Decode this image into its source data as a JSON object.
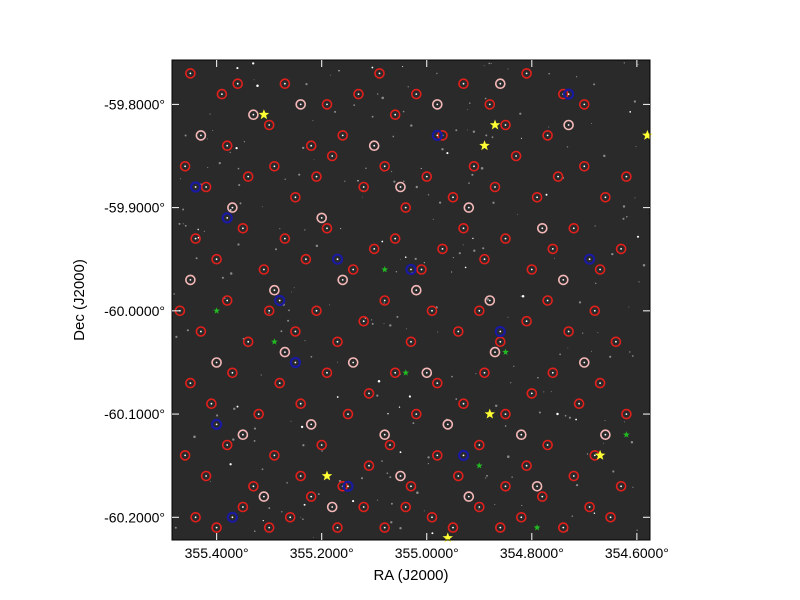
{
  "chart_data": {
    "type": "scatter",
    "title": "",
    "xlabel": "RA (J2000)",
    "ylabel": "Dec (J2000)",
    "xlim": [
      355.485,
      354.575
    ],
    "ylim": [
      -60.222,
      -59.757
    ],
    "x_ticks": [
      {
        "value": 355.4,
        "label": "355.4000°"
      },
      {
        "value": 355.2,
        "label": "355.2000°"
      },
      {
        "value": 355.0,
        "label": "355.0000°"
      },
      {
        "value": 354.8,
        "label": "354.8000°"
      },
      {
        "value": 354.6,
        "label": "354.6000°"
      }
    ],
    "y_ticks": [
      {
        "value": -59.8,
        "label": "-59.8000°"
      },
      {
        "value": -59.9,
        "label": "-59.9000°"
      },
      {
        "value": -60.0,
        "label": "-60.0000°"
      },
      {
        "value": -60.1,
        "label": "-60.1000°"
      },
      {
        "value": -60.2,
        "label": "-60.2000°"
      }
    ],
    "background": "star field image",
    "grid": false,
    "legend": "none",
    "colors": {
      "red_circle": "#e0201c",
      "pink_circle": "#f4b8b8",
      "blue_circle": "#1a1aa0",
      "yellow_star": "#ffff33",
      "green_star": "#22bb22",
      "image_bg": "#2a2a2a",
      "frame": "#000000"
    },
    "series": [
      {
        "marker": "red-circle",
        "points": [
          [
            355.45,
            -59.77
          ],
          [
            355.39,
            -59.79
          ],
          [
            355.36,
            -59.78
          ],
          [
            355.3,
            -59.82
          ],
          [
            355.27,
            -59.78
          ],
          [
            355.22,
            -59.84
          ],
          [
            355.19,
            -59.8
          ],
          [
            355.16,
            -59.83
          ],
          [
            355.13,
            -59.79
          ],
          [
            355.09,
            -59.77
          ],
          [
            355.06,
            -59.81
          ],
          [
            355.02,
            -59.79
          ],
          [
            354.97,
            -59.83
          ],
          [
            354.93,
            -59.78
          ],
          [
            354.88,
            -59.8
          ],
          [
            354.85,
            -59.82
          ],
          [
            354.81,
            -59.77
          ],
          [
            354.77,
            -59.83
          ],
          [
            354.74,
            -59.79
          ],
          [
            354.7,
            -59.8
          ],
          [
            355.46,
            -59.86
          ],
          [
            355.42,
            -59.88
          ],
          [
            355.38,
            -59.84
          ],
          [
            355.34,
            -59.87
          ],
          [
            355.29,
            -59.86
          ],
          [
            355.25,
            -59.89
          ],
          [
            355.21,
            -59.87
          ],
          [
            355.18,
            -59.85
          ],
          [
            355.12,
            -59.88
          ],
          [
            355.08,
            -59.86
          ],
          [
            355.04,
            -59.9
          ],
          [
            355.0,
            -59.87
          ],
          [
            354.95,
            -59.89
          ],
          [
            354.91,
            -59.86
          ],
          [
            354.87,
            -59.88
          ],
          [
            354.83,
            -59.85
          ],
          [
            354.79,
            -59.89
          ],
          [
            354.75,
            -59.87
          ],
          [
            354.7,
            -59.86
          ],
          [
            354.66,
            -59.89
          ],
          [
            354.62,
            -59.87
          ],
          [
            355.44,
            -59.93
          ],
          [
            355.4,
            -59.95
          ],
          [
            355.35,
            -59.92
          ],
          [
            355.31,
            -59.96
          ],
          [
            355.27,
            -59.93
          ],
          [
            355.23,
            -59.95
          ],
          [
            355.19,
            -59.92
          ],
          [
            355.14,
            -59.96
          ],
          [
            355.1,
            -59.94
          ],
          [
            355.06,
            -59.93
          ],
          [
            355.01,
            -59.96
          ],
          [
            354.97,
            -59.94
          ],
          [
            354.93,
            -59.92
          ],
          [
            354.89,
            -59.95
          ],
          [
            354.85,
            -59.93
          ],
          [
            354.8,
            -59.96
          ],
          [
            354.76,
            -59.94
          ],
          [
            354.72,
            -59.92
          ],
          [
            354.67,
            -59.96
          ],
          [
            354.63,
            -59.94
          ],
          [
            355.47,
            -60.0
          ],
          [
            355.43,
            -60.02
          ],
          [
            355.38,
            -59.99
          ],
          [
            355.34,
            -60.03
          ],
          [
            355.3,
            -60.0
          ],
          [
            355.25,
            -60.02
          ],
          [
            355.21,
            -60.0
          ],
          [
            355.17,
            -60.03
          ],
          [
            355.12,
            -60.01
          ],
          [
            355.08,
            -59.99
          ],
          [
            355.03,
            -60.03
          ],
          [
            354.99,
            -60.0
          ],
          [
            354.94,
            -60.02
          ],
          [
            354.9,
            -60.0
          ],
          [
            354.86,
            -60.03
          ],
          [
            354.81,
            -60.01
          ],
          [
            354.77,
            -59.99
          ],
          [
            354.73,
            -60.02
          ],
          [
            354.68,
            -60.0
          ],
          [
            354.64,
            -60.03
          ],
          [
            355.45,
            -60.07
          ],
          [
            355.41,
            -60.09
          ],
          [
            355.37,
            -60.06
          ],
          [
            355.32,
            -60.1
          ],
          [
            355.28,
            -60.07
          ],
          [
            355.24,
            -60.09
          ],
          [
            355.19,
            -60.06
          ],
          [
            355.15,
            -60.1
          ],
          [
            355.11,
            -60.08
          ],
          [
            355.06,
            -60.06
          ],
          [
            355.02,
            -60.1
          ],
          [
            354.98,
            -60.07
          ],
          [
            354.93,
            -60.09
          ],
          [
            354.89,
            -60.06
          ],
          [
            354.85,
            -60.1
          ],
          [
            354.8,
            -60.08
          ],
          [
            354.76,
            -60.06
          ],
          [
            354.71,
            -60.09
          ],
          [
            354.67,
            -60.07
          ],
          [
            354.62,
            -60.1
          ],
          [
            355.46,
            -60.14
          ],
          [
            355.42,
            -60.16
          ],
          [
            355.38,
            -60.13
          ],
          [
            355.33,
            -60.17
          ],
          [
            355.29,
            -60.14
          ],
          [
            355.24,
            -60.16
          ],
          [
            355.2,
            -60.13
          ],
          [
            355.16,
            -60.17
          ],
          [
            355.11,
            -60.15
          ],
          [
            355.07,
            -60.13
          ],
          [
            355.03,
            -60.17
          ],
          [
            354.98,
            -60.14
          ],
          [
            354.94,
            -60.16
          ],
          [
            354.9,
            -60.13
          ],
          [
            354.85,
            -60.17
          ],
          [
            354.81,
            -60.15
          ],
          [
            354.77,
            -60.13
          ],
          [
            354.72,
            -60.16
          ],
          [
            354.68,
            -60.14
          ],
          [
            354.63,
            -60.17
          ],
          [
            355.44,
            -60.2
          ],
          [
            355.4,
            -60.21
          ],
          [
            355.35,
            -60.19
          ],
          [
            355.3,
            -60.21
          ],
          [
            355.26,
            -60.2
          ],
          [
            355.22,
            -60.18
          ],
          [
            355.17,
            -60.21
          ],
          [
            355.12,
            -60.19
          ],
          [
            355.08,
            -60.21
          ],
          [
            355.04,
            -60.19
          ],
          [
            354.99,
            -60.2
          ],
          [
            354.95,
            -60.21
          ],
          [
            354.9,
            -60.19
          ],
          [
            354.86,
            -60.21
          ],
          [
            354.82,
            -60.2
          ],
          [
            354.78,
            -60.18
          ],
          [
            354.74,
            -60.21
          ],
          [
            354.69,
            -60.19
          ],
          [
            354.65,
            -60.2
          ]
        ]
      },
      {
        "marker": "pink-circle",
        "points": [
          [
            355.43,
            -59.83
          ],
          [
            355.33,
            -59.81
          ],
          [
            355.24,
            -59.8
          ],
          [
            355.1,
            -59.84
          ],
          [
            354.98,
            -59.8
          ],
          [
            354.86,
            -59.78
          ],
          [
            354.73,
            -59.82
          ],
          [
            355.37,
            -59.9
          ],
          [
            355.2,
            -59.91
          ],
          [
            355.05,
            -59.88
          ],
          [
            354.92,
            -59.9
          ],
          [
            354.78,
            -59.92
          ],
          [
            355.45,
            -59.97
          ],
          [
            355.29,
            -59.98
          ],
          [
            355.16,
            -59.97
          ],
          [
            355.02,
            -59.98
          ],
          [
            354.88,
            -59.99
          ],
          [
            354.74,
            -59.97
          ],
          [
            355.4,
            -60.05
          ],
          [
            355.27,
            -60.04
          ],
          [
            355.14,
            -60.05
          ],
          [
            355.0,
            -60.06
          ],
          [
            354.87,
            -60.04
          ],
          [
            354.7,
            -60.05
          ],
          [
            355.35,
            -60.12
          ],
          [
            355.22,
            -60.11
          ],
          [
            355.08,
            -60.12
          ],
          [
            354.96,
            -60.11
          ],
          [
            354.82,
            -60.12
          ],
          [
            354.66,
            -60.12
          ],
          [
            355.31,
            -60.18
          ],
          [
            355.18,
            -60.19
          ],
          [
            355.05,
            -60.16
          ],
          [
            354.92,
            -60.18
          ],
          [
            354.79,
            -60.17
          ]
        ]
      },
      {
        "marker": "blue-circle",
        "points": [
          [
            354.73,
            -59.79
          ],
          [
            354.98,
            -59.83
          ],
          [
            355.44,
            -59.88
          ],
          [
            355.38,
            -59.91
          ],
          [
            355.17,
            -59.95
          ],
          [
            355.03,
            -59.96
          ],
          [
            354.69,
            -59.95
          ],
          [
            355.28,
            -59.99
          ],
          [
            354.86,
            -60.02
          ],
          [
            355.25,
            -60.05
          ],
          [
            354.93,
            -60.14
          ],
          [
            355.15,
            -60.17
          ],
          [
            355.37,
            -60.2
          ],
          [
            355.4,
            -60.11
          ]
        ]
      },
      {
        "marker": "yellow-star",
        "points": [
          [
            355.31,
            -59.81
          ],
          [
            354.87,
            -59.82
          ],
          [
            354.89,
            -59.84
          ],
          [
            354.88,
            -60.1
          ],
          [
            354.67,
            -60.14
          ],
          [
            354.58,
            -59.83
          ],
          [
            355.19,
            -60.16
          ],
          [
            354.96,
            -60.22
          ]
        ]
      },
      {
        "marker": "green-star",
        "points": [
          [
            355.08,
            -59.96
          ],
          [
            355.04,
            -60.06
          ],
          [
            354.85,
            -60.04
          ],
          [
            355.29,
            -60.03
          ],
          [
            354.62,
            -60.12
          ],
          [
            354.9,
            -60.15
          ],
          [
            354.79,
            -60.21
          ],
          [
            355.4,
            -60.0
          ]
        ]
      }
    ]
  }
}
